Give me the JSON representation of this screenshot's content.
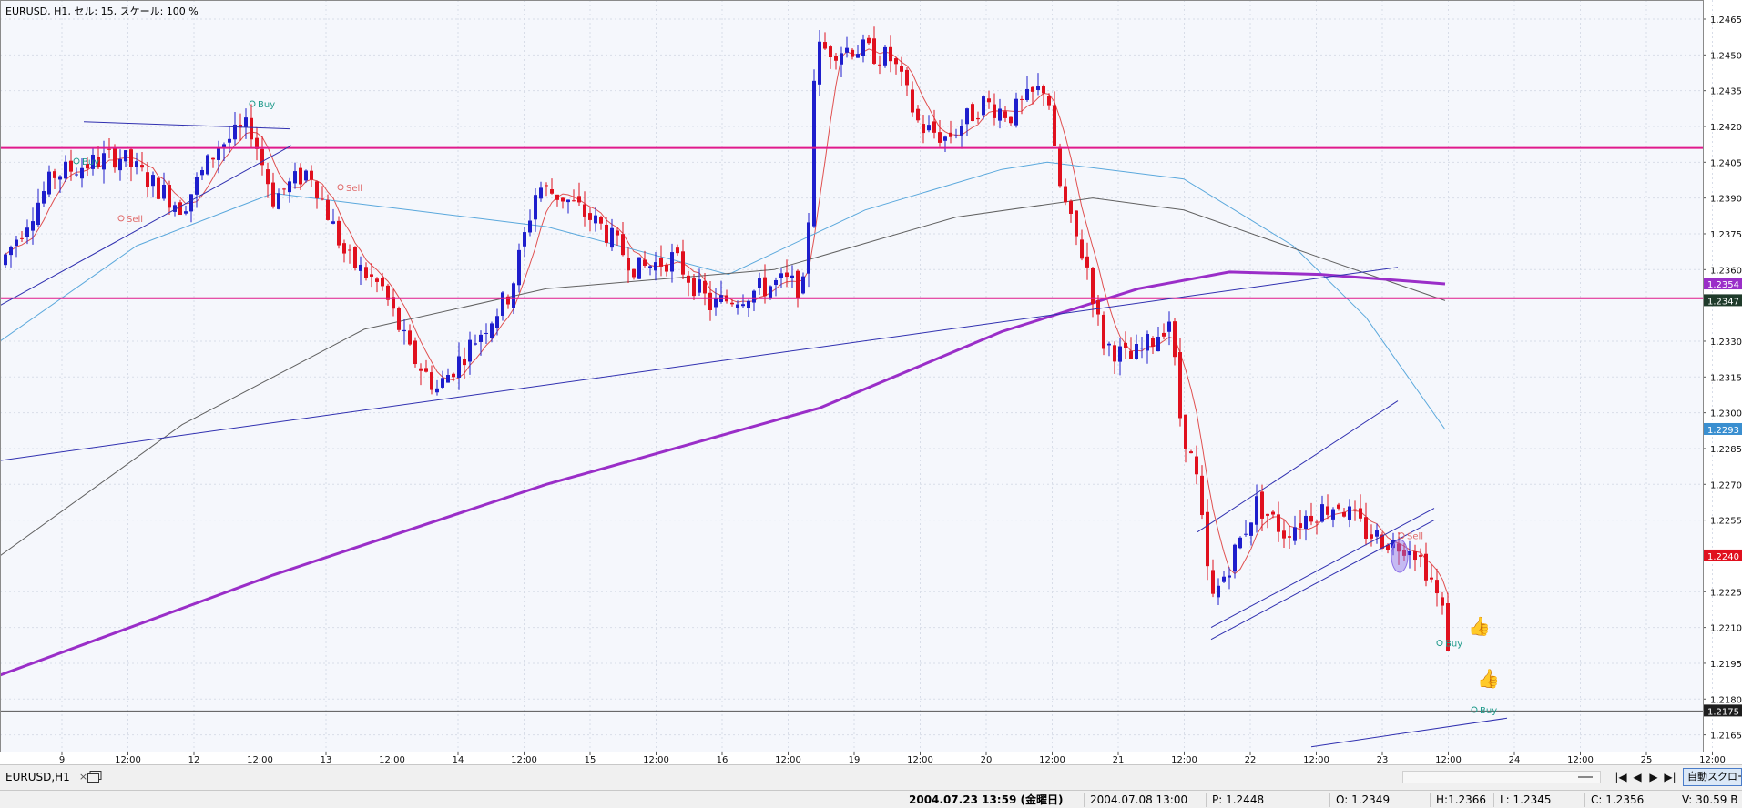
{
  "chart": {
    "header": "EURUSD, H1, セル: 15, スケール: 100 %",
    "colors": {
      "background": "#f5f7fc",
      "grid": "#d8dde8",
      "bull": "#1e1ecc",
      "bear": "#e0101e",
      "hline": "#e01a8c",
      "trendline": "#3030b0",
      "ma_fast": "#e05050",
      "ma_blue": "#5aa8dc",
      "ma_gray": "#606060",
      "ma_purple": "#9a2ec8"
    },
    "price_axis": {
      "labels": [
        "1.2465",
        "1.2450",
        "1.2435",
        "1.2420",
        "1.2405",
        "1.2390",
        "1.2375",
        "1.2360",
        "1.2330",
        "1.2315",
        "1.2300",
        "1.2285",
        "1.2270",
        "1.2255",
        "1.2225",
        "1.2210",
        "1.2195",
        "1.2180",
        "1.2165"
      ],
      "markers": [
        {
          "text": "1.2354",
          "price": 1.2354,
          "color": "#9a2ec8"
        },
        {
          "text": "1.2347",
          "price": 1.2347,
          "color": "#1f3b2b"
        },
        {
          "text": "1.2293",
          "price": 1.2293,
          "color": "#3a8fd0"
        },
        {
          "text": "1.2240",
          "price": 1.224,
          "color": "#e0101e"
        },
        {
          "text": "1.2175",
          "price": 1.2175,
          "color": "#1e1e1e"
        }
      ]
    },
    "time_axis": [
      "9",
      "12:00",
      "12",
      "12:00",
      "13",
      "12:00",
      "14",
      "12:00",
      "15",
      "12:00",
      "16",
      "12:00",
      "19",
      "12:00",
      "20",
      "12:00",
      "21",
      "12:00",
      "22",
      "12:00",
      "23",
      "12:00",
      "24",
      "12:00",
      "25",
      "12:00"
    ],
    "signals": [
      {
        "text": "Buy",
        "kind": "buy"
      },
      {
        "text": "Sell",
        "kind": "sell"
      },
      {
        "text": "Buy",
        "kind": "buy"
      },
      {
        "text": "Sell",
        "kind": "sell"
      },
      {
        "text": "Sell",
        "kind": "sell"
      },
      {
        "text": "Buy",
        "kind": "buy"
      },
      {
        "text": "Buy",
        "kind": "buy"
      }
    ]
  },
  "tab_bar": {
    "tab_label": "EURUSD,H1",
    "close_symbol": "×",
    "auto_scroll_label": "自動スクロール",
    "nav": [
      "|◀",
      "◀",
      "▶",
      "▶|"
    ]
  },
  "status_bar": {
    "current_time": "2004.07.23 13:59 (金曜日)",
    "cursor_time": "2004.07.08 13:00",
    "price": "P: 1.2448",
    "open": "O: 1.2349",
    "high": "H:1.2366",
    "low": "L: 1.2345",
    "close": "C: 1.2356",
    "volume": "V: 30.59 B"
  }
}
